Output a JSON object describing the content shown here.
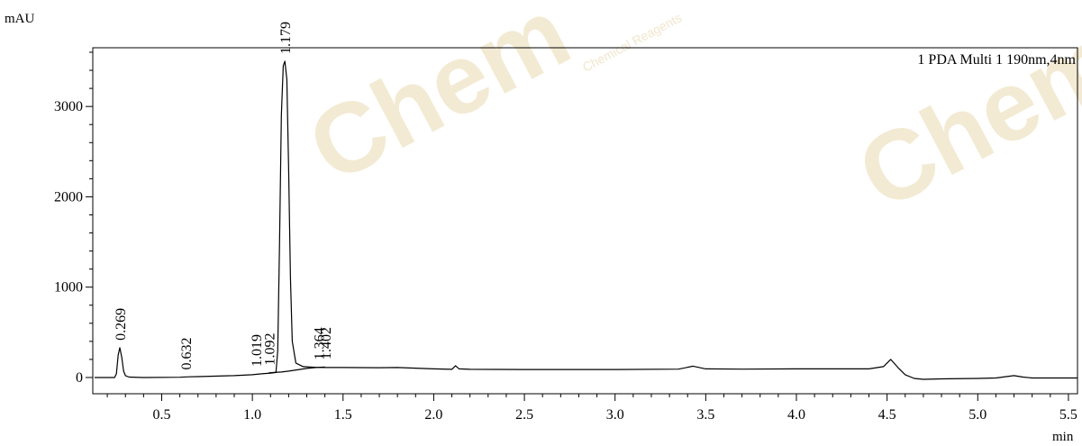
{
  "chart_data": {
    "type": "line",
    "xlabel": "min",
    "ylabel": "mAU",
    "legend": "1 PDA Multi 1 190nm,4nm",
    "legend_position": "top-right",
    "xlim": [
      0.12,
      5.55
    ],
    "ylim": [
      -180,
      3650
    ],
    "x_ticks": [
      0.5,
      1.0,
      1.5,
      2.0,
      2.5,
      3.0,
      3.5,
      4.0,
      4.5,
      5.0,
      5.5
    ],
    "x_tick_labels": [
      "0.5",
      "1.0",
      "1.5",
      "2.0",
      "2.5",
      "3.0",
      "3.5",
      "4.0",
      "4.5",
      "5.0",
      "5.5"
    ],
    "x_minor_step": 0.1,
    "y_ticks": [
      0,
      1000,
      2000,
      3000
    ],
    "y_tick_labels": [
      "0",
      "1000",
      "2000",
      "3000"
    ],
    "y_minor_step": 200,
    "grid": false,
    "peaks": [
      {
        "label": "0.269",
        "rt": 0.269,
        "height": 330
      },
      {
        "label": "0.632",
        "rt": 0.632,
        "height": 5
      },
      {
        "label": "1.019",
        "rt": 1.019,
        "height": 40
      },
      {
        "label": "1.092",
        "rt": 1.092,
        "height": 55
      },
      {
        "label": "1.179",
        "rt": 1.179,
        "height": 3500
      },
      {
        "label": "1.364",
        "rt": 1.364,
        "height": 115
      },
      {
        "label": "1.402",
        "rt": 1.402,
        "height": 120
      }
    ],
    "series": [
      {
        "x": [
          0.13,
          0.24,
          0.25,
          0.26,
          0.269,
          0.28,
          0.29,
          0.3,
          0.32,
          0.4,
          0.6,
          0.65,
          0.7,
          0.9,
          1.0,
          1.05,
          1.1,
          1.13,
          1.14,
          1.15,
          1.16,
          1.17,
          1.179,
          1.19,
          1.2,
          1.21,
          1.22,
          1.24,
          1.28,
          1.35,
          1.4,
          1.5,
          1.7,
          1.8,
          2.0,
          2.1,
          2.12,
          2.14,
          2.2,
          2.5,
          3.0,
          3.35,
          3.43,
          3.5,
          3.7,
          4.0,
          4.4,
          4.48,
          4.52,
          4.56,
          4.6,
          4.65,
          4.7,
          4.8,
          5.0,
          5.1,
          5.2,
          5.25,
          5.3,
          5.55
        ],
        "y": [
          0,
          0,
          40,
          250,
          330,
          220,
          70,
          20,
          5,
          0,
          3,
          8,
          10,
          20,
          30,
          40,
          48,
          55,
          300,
          1500,
          2900,
          3450,
          3500,
          3300,
          2300,
          1100,
          400,
          160,
          120,
          112,
          110,
          110,
          108,
          110,
          95,
          90,
          130,
          95,
          90,
          88,
          88,
          92,
          125,
          95,
          92,
          95,
          95,
          120,
          200,
          110,
          30,
          -10,
          -20,
          -15,
          -10,
          -5,
          20,
          5,
          -5,
          -5
        ]
      },
      {
        "x": [
          1.09,
          1.12,
          1.16,
          1.2,
          1.25,
          1.3,
          1.35,
          1.4
        ],
        "y": [
          50,
          55,
          60,
          70,
          85,
          100,
          110,
          115
        ]
      }
    ]
  }
}
